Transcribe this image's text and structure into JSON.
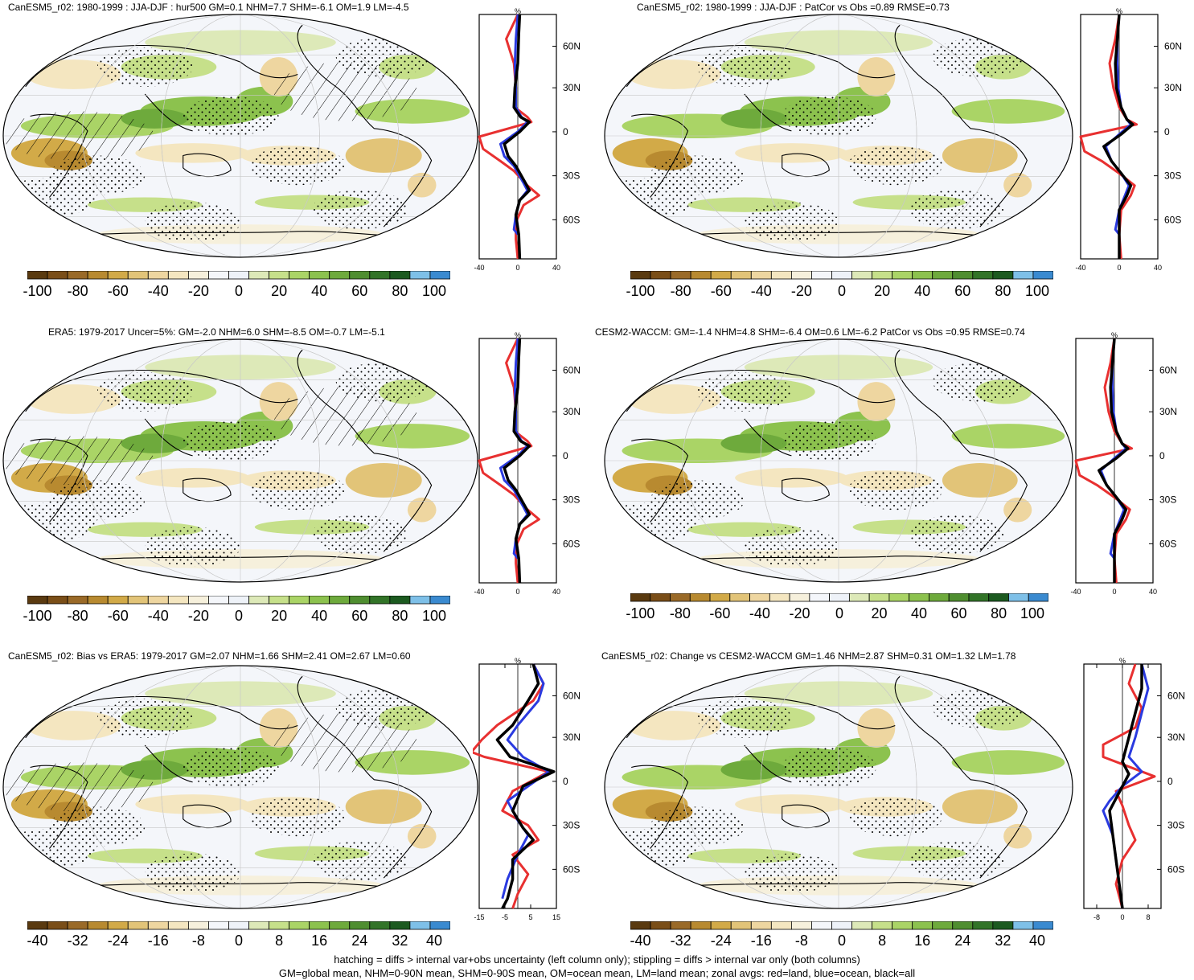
{
  "colors": {
    "scale": [
      "#5a3a10",
      "#7a4e18",
      "#9a6a28",
      "#b88a30",
      "#d2aa48",
      "#e2c478",
      "#eed6a0",
      "#f4e6c0",
      "#f6f0dc",
      "#f4f6fa",
      "#eef2f8",
      "#dde9b8",
      "#c6e08a",
      "#aad466",
      "#8cc24e",
      "#6eaa3c",
      "#4f8e30",
      "#327428",
      "#1c5a20",
      "#7ec0e8",
      "#3a8ad0"
    ],
    "land_line": "#e83030",
    "ocean_line": "#2a3ae0",
    "all_line": "#000000"
  },
  "panels": [
    {
      "id": "p1",
      "title": "CanESM5_r02: 1980-1999 : JJA-DJF : hur500 GM=0.1 NHM=7.7 SHM=-6.1 OM=1.9 LM=-4.5",
      "hatching": true,
      "zonal_unit": "%",
      "lat_labels": [
        "60N",
        "30N",
        "0",
        "30S",
        "60S"
      ],
      "x_ticks": [
        "-40",
        "0",
        "40"
      ],
      "cbar_labels": [
        "-100",
        "-80",
        "-60",
        "-40",
        "-20",
        "0",
        "20",
        "40",
        "60",
        "80",
        "100"
      ]
    },
    {
      "id": "p2",
      "title": "CanESM5_r02: 1980-1999 : JJA-DJF : PatCor vs Obs =0.89 RMSE=0.73",
      "hatching": false,
      "zonal_unit": "%",
      "lat_labels": [
        "60N",
        "30N",
        "0",
        "30S",
        "60S"
      ],
      "x_ticks": [
        "-40",
        "0",
        "40"
      ],
      "cbar_labels": [
        "-100",
        "-80",
        "-60",
        "-40",
        "-20",
        "0",
        "20",
        "40",
        "60",
        "80",
        "100"
      ]
    },
    {
      "id": "p3",
      "title": "ERA5: 1979-2017 Uncer=5%: GM=-2.0 NHM=6.0 SHM=-8.5 OM=-0.7 LM=-5.1",
      "hatching": true,
      "zonal_unit": "%",
      "lat_labels": [
        "60N",
        "30N",
        "0",
        "30S",
        "60S"
      ],
      "x_ticks": [
        "-40",
        "0",
        "40"
      ],
      "cbar_labels": [
        "-100",
        "-80",
        "-60",
        "-40",
        "-20",
        "0",
        "20",
        "40",
        "60",
        "80",
        "100"
      ]
    },
    {
      "id": "p4",
      "title": "CESM2-WACCM: GM=-1.4 NHM=4.8 SHM=-6.4 OM=0.6 LM=-6.2 PatCor vs Obs =0.95 RMSE=0.74",
      "hatching": false,
      "zonal_unit": "%",
      "lat_labels": [
        "60N",
        "30N",
        "0",
        "30S",
        "60S"
      ],
      "x_ticks": [
        "-40",
        "0",
        "40"
      ],
      "cbar_labels": [
        "-100",
        "-80",
        "-60",
        "-40",
        "-20",
        "0",
        "20",
        "40",
        "60",
        "80",
        "100"
      ]
    },
    {
      "id": "p5",
      "title": "CanESM5_r02: Bias vs ERA5: 1979-2017 GM=2.07 NHM=1.66 SHM=2.41 OM=2.67 LM=0.60",
      "hatching": true,
      "zonal_unit": "%",
      "lat_labels": [
        "60N",
        "30N",
        "0",
        "30S",
        "60S"
      ],
      "x_ticks": [
        "-15",
        "-5",
        "5",
        "15"
      ],
      "cbar_labels": [
        "-40",
        "-32",
        "-24",
        "-16",
        "-8",
        "0",
        "8",
        "16",
        "24",
        "32",
        "40"
      ]
    },
    {
      "id": "p6",
      "title": "CanESM5_r02: Change vs CESM2-WACCM GM=1.46 NHM=2.87 SHM=0.31 OM=1.32 LM=1.78",
      "hatching": false,
      "zonal_unit": "%",
      "lat_labels": [
        "60N",
        "30N",
        "0",
        "30S",
        "60S"
      ],
      "x_ticks": [
        "-8",
        "0",
        "8"
      ],
      "cbar_labels": [
        "-40",
        "-32",
        "-24",
        "-16",
        "-8",
        "0",
        "8",
        "16",
        "24",
        "32",
        "40"
      ]
    }
  ],
  "footer": {
    "line1": "hatching = diffs > internal var+obs uncertainty (left column only); stippling = diffs > internal var only (both columns)",
    "line2": "GM=global mean, NHM=0-90N mean, SHM=0-90S mean, OM=ocean mean, LM=land mean; zonal avgs: red=land, blue=ocean, black=all"
  }
}
